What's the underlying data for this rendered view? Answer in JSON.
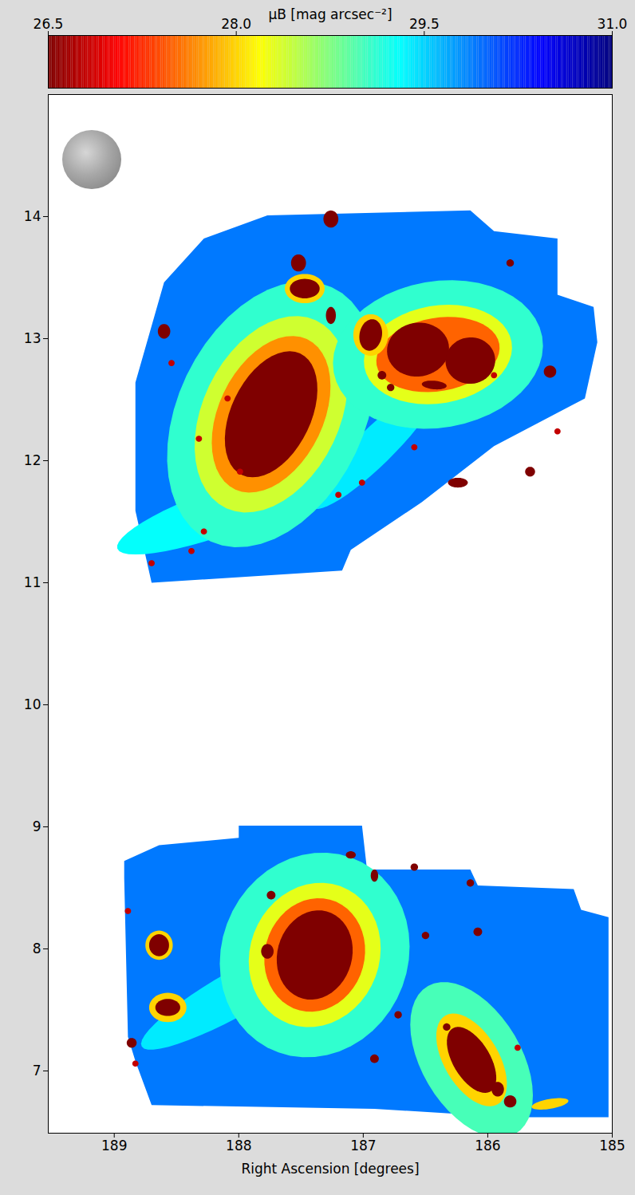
{
  "chart_data": {
    "type": "map",
    "xlabel": "Right Ascension [degrees]",
    "xlim": [
      189.53,
      185
    ],
    "xticks": [
      189,
      188,
      187,
      186,
      185
    ],
    "ylim": [
      6.49,
      15.0
    ],
    "yticks": [
      7,
      8,
      9,
      10,
      11,
      12,
      13,
      14
    ],
    "colorbar": {
      "label": "μB [mag arcsec⁻²]",
      "lim": [
        26.5,
        31.0
      ],
      "ticks": [
        26.5,
        {
          "value": 28,
          "label": "28.0"
        },
        29.5,
        {
          "value": 31,
          "label": "31.0"
        }
      ]
    },
    "regions": [
      {
        "mu": 29.9,
        "points": [
          [
            188.6,
            13.46
          ],
          [
            188.28,
            13.82
          ],
          [
            187.77,
            14.01
          ],
          [
            186.14,
            14.05
          ],
          [
            185.95,
            13.88
          ],
          [
            185.44,
            13.82
          ],
          [
            185.44,
            13.36
          ],
          [
            185.15,
            13.26
          ],
          [
            185.12,
            12.97
          ],
          [
            185.22,
            12.51
          ],
          [
            185.95,
            12.12
          ],
          [
            186.53,
            11.66
          ],
          [
            187.1,
            11.27
          ],
          [
            187.17,
            11.1
          ],
          [
            188.7,
            11.0
          ],
          [
            188.83,
            11.59
          ],
          [
            188.83,
            12.64
          ]
        ]
      },
      {
        "mu": 29.9,
        "points": [
          [
            188.92,
            8.72
          ],
          [
            188.64,
            8.85
          ],
          [
            188.0,
            8.91
          ],
          [
            188.0,
            9.01
          ],
          [
            187.01,
            9.01
          ],
          [
            186.97,
            8.65
          ],
          [
            186.14,
            8.65
          ],
          [
            186.08,
            8.52
          ],
          [
            185.31,
            8.49
          ],
          [
            185.25,
            8.32
          ],
          [
            185.03,
            8.26
          ],
          [
            185.03,
            6.62
          ],
          [
            185.82,
            6.62
          ],
          [
            186.91,
            6.69
          ],
          [
            188.7,
            6.72
          ],
          [
            188.83,
            7.08
          ],
          [
            188.89,
            7.28
          ],
          [
            188.92,
            8.58
          ]
        ]
      }
    ],
    "sources": [
      {
        "ra": 188.12,
        "dec": 11.59,
        "a": 0.91,
        "b": 0.19,
        "pa": 70,
        "mu": 29.3
      },
      {
        "ra": 186.91,
        "dec": 12.11,
        "a": 0.7,
        "b": 0.15,
        "pa": 45,
        "mu": 29.4
      },
      {
        "ra": 188.0,
        "dec": 7.65,
        "a": 0.9,
        "b": 0.18,
        "pa": 60,
        "mu": 29.4
      },
      {
        "ra": 187.74,
        "dec": 12.38,
        "a": 1.15,
        "b": 0.75,
        "pa": 25,
        "mu": 29.1
      },
      {
        "ra": 187.74,
        "dec": 12.38,
        "a": 0.85,
        "b": 0.55,
        "pa": 25,
        "mu": 28.4
      },
      {
        "ra": 187.74,
        "dec": 12.38,
        "a": 0.68,
        "b": 0.42,
        "pa": 25,
        "mu": 27.7
      },
      {
        "ra": 187.74,
        "dec": 12.38,
        "a": 0.55,
        "b": 0.32,
        "pa": 25,
        "mu": 26.5
      },
      {
        "ra": 186.4,
        "dec": 12.87,
        "a": 0.85,
        "b": 0.6,
        "pa": 80,
        "mu": 29.1
      },
      {
        "ra": 186.4,
        "dec": 12.87,
        "a": 0.6,
        "b": 0.4,
        "pa": 80,
        "mu": 28.3
      },
      {
        "ra": 186.4,
        "dec": 12.87,
        "a": 0.5,
        "b": 0.3,
        "pa": 80,
        "mu": 27.5
      },
      {
        "ra": 186.56,
        "dec": 12.91,
        "a": 0.25,
        "b": 0.22,
        "pa": 80,
        "mu": 26.5
      },
      {
        "ra": 186.14,
        "dec": 12.82,
        "a": 0.2,
        "b": 0.19,
        "pa": 80,
        "mu": 26.5
      },
      {
        "ra": 186.94,
        "dec": 13.03,
        "a": 0.17,
        "b": 0.14,
        "pa": 0,
        "mu": 28.0
      },
      {
        "ra": 186.94,
        "dec": 13.03,
        "a": 0.13,
        "b": 0.09,
        "pa": 10,
        "mu": 26.5
      },
      {
        "ra": 187.47,
        "dec": 13.41,
        "a": 0.16,
        "b": 0.12,
        "pa": 90,
        "mu": 28.0
      },
      {
        "ra": 187.47,
        "dec": 13.41,
        "a": 0.12,
        "b": 0.08,
        "pa": 90,
        "mu": 26.5
      },
      {
        "ra": 187.52,
        "dec": 13.62,
        "a": 0.07,
        "b": 0.06,
        "pa": 0,
        "mu": 26.5
      },
      {
        "ra": 187.26,
        "dec": 13.98,
        "a": 0.07,
        "b": 0.06,
        "pa": 0,
        "mu": 26.5
      },
      {
        "ra": 187.26,
        "dec": 13.19,
        "a": 0.07,
        "b": 0.04,
        "pa": 0,
        "mu": 26.5
      },
      {
        "ra": 188.6,
        "dec": 13.06,
        "a": 0.06,
        "b": 0.05,
        "pa": 0,
        "mu": 26.5
      },
      {
        "ra": 185.5,
        "dec": 12.73,
        "a": 0.05,
        "b": 0.05,
        "pa": 0,
        "mu": 26.5
      },
      {
        "ra": 186.24,
        "dec": 11.82,
        "a": 0.08,
        "b": 0.04,
        "pa": 90,
        "mu": 26.5
      },
      {
        "ra": 185.66,
        "dec": 11.91,
        "a": 0.04,
        "b": 0.04,
        "pa": 0,
        "mu": 26.5
      },
      {
        "ra": 186.43,
        "dec": 12.62,
        "a": 0.1,
        "b": 0.035,
        "pa": 95,
        "mu": 26.5
      },
      {
        "ra": 185.82,
        "dec": 13.62,
        "a": 0.03,
        "b": 0.03,
        "pa": 0,
        "mu": 26.5
      },
      {
        "ra": 186.85,
        "dec": 12.7,
        "a": 0.035,
        "b": 0.035,
        "pa": 0,
        "mu": 26.5
      },
      {
        "ra": 186.78,
        "dec": 12.6,
        "a": 0.03,
        "b": 0.03,
        "pa": 0,
        "mu": 26.5
      },
      {
        "ra": 188.7,
        "dec": 11.16,
        "a": 0.025,
        "b": 0.025,
        "pa": 0,
        "mu": 26.8
      },
      {
        "ra": 188.28,
        "dec": 11.42,
        "a": 0.025,
        "b": 0.025,
        "pa": 0,
        "mu": 26.8
      },
      {
        "ra": 187.99,
        "dec": 11.91,
        "a": 0.025,
        "b": 0.025,
        "pa": 0,
        "mu": 26.8
      },
      {
        "ra": 188.38,
        "dec": 11.26,
        "a": 0.025,
        "b": 0.025,
        "pa": 0,
        "mu": 26.8
      },
      {
        "ra": 188.54,
        "dec": 12.8,
        "a": 0.025,
        "b": 0.025,
        "pa": 0,
        "mu": 26.8
      },
      {
        "ra": 188.09,
        "dec": 12.51,
        "a": 0.025,
        "b": 0.025,
        "pa": 0,
        "mu": 26.8
      },
      {
        "ra": 187.2,
        "dec": 11.72,
        "a": 0.025,
        "b": 0.025,
        "pa": 0,
        "mu": 26.8
      },
      {
        "ra": 187.01,
        "dec": 11.82,
        "a": 0.025,
        "b": 0.025,
        "pa": 0,
        "mu": 26.8
      },
      {
        "ra": 186.59,
        "dec": 12.11,
        "a": 0.025,
        "b": 0.025,
        "pa": 0,
        "mu": 26.8
      },
      {
        "ra": 185.44,
        "dec": 12.24,
        "a": 0.025,
        "b": 0.025,
        "pa": 0,
        "mu": 26.8
      },
      {
        "ra": 185.95,
        "dec": 12.7,
        "a": 0.025,
        "b": 0.025,
        "pa": 0,
        "mu": 26.8
      },
      {
        "ra": 188.32,
        "dec": 12.18,
        "a": 0.025,
        "b": 0.025,
        "pa": 0,
        "mu": 26.8
      },
      {
        "ra": 187.39,
        "dec": 7.95,
        "a": 0.85,
        "b": 0.75,
        "pa": 20,
        "mu": 29.1
      },
      {
        "ra": 187.39,
        "dec": 7.95,
        "a": 0.6,
        "b": 0.52,
        "pa": 20,
        "mu": 28.3
      },
      {
        "ra": 187.39,
        "dec": 7.95,
        "a": 0.47,
        "b": 0.4,
        "pa": 15,
        "mu": 27.5
      },
      {
        "ra": 187.39,
        "dec": 7.95,
        "a": 0.37,
        "b": 0.3,
        "pa": 15,
        "mu": 26.5
      },
      {
        "ra": 186.13,
        "dec": 7.09,
        "a": 0.7,
        "b": 0.4,
        "pa": -30,
        "mu": 29.0
      },
      {
        "ra": 186.13,
        "dec": 7.09,
        "a": 0.42,
        "b": 0.22,
        "pa": -30,
        "mu": 28.0
      },
      {
        "ra": 186.13,
        "dec": 7.09,
        "a": 0.3,
        "b": 0.15,
        "pa": -30,
        "mu": 26.5
      },
      {
        "ra": 185.5,
        "dec": 6.73,
        "a": 0.15,
        "b": 0.04,
        "pa": 80,
        "mu": 28.0
      },
      {
        "ra": 185.92,
        "dec": 6.85,
        "a": 0.06,
        "b": 0.05,
        "pa": 0,
        "mu": 26.5
      },
      {
        "ra": 185.82,
        "dec": 6.75,
        "a": 0.05,
        "b": 0.05,
        "pa": 0,
        "mu": 26.5
      },
      {
        "ra": 188.64,
        "dec": 8.03,
        "a": 0.12,
        "b": 0.11,
        "pa": 0,
        "mu": 28.0
      },
      {
        "ra": 188.64,
        "dec": 8.03,
        "a": 0.09,
        "b": 0.08,
        "pa": 0,
        "mu": 26.5
      },
      {
        "ra": 188.57,
        "dec": 7.52,
        "a": 0.15,
        "b": 0.12,
        "pa": 90,
        "mu": 28.0
      },
      {
        "ra": 188.57,
        "dec": 7.52,
        "a": 0.1,
        "b": 0.07,
        "pa": 90,
        "mu": 26.5
      },
      {
        "ra": 188.86,
        "dec": 7.23,
        "a": 0.04,
        "b": 0.04,
        "pa": 0,
        "mu": 26.5
      },
      {
        "ra": 187.77,
        "dec": 7.98,
        "a": 0.06,
        "b": 0.05,
        "pa": 0,
        "mu": 26.5
      },
      {
        "ra": 187.74,
        "dec": 8.44,
        "a": 0.035,
        "b": 0.035,
        "pa": 0,
        "mu": 26.5
      },
      {
        "ra": 186.91,
        "dec": 8.6,
        "a": 0.05,
        "b": 0.03,
        "pa": 0,
        "mu": 26.5
      },
      {
        "ra": 186.59,
        "dec": 8.67,
        "a": 0.03,
        "b": 0.03,
        "pa": 0,
        "mu": 26.5
      },
      {
        "ra": 186.08,
        "dec": 8.14,
        "a": 0.035,
        "b": 0.035,
        "pa": 0,
        "mu": 26.5
      },
      {
        "ra": 186.33,
        "dec": 7.36,
        "a": 0.03,
        "b": 0.03,
        "pa": 0,
        "mu": 26.5
      },
      {
        "ra": 186.91,
        "dec": 7.1,
        "a": 0.035,
        "b": 0.035,
        "pa": 0,
        "mu": 26.5
      },
      {
        "ra": 186.72,
        "dec": 7.46,
        "a": 0.03,
        "b": 0.03,
        "pa": 0,
        "mu": 26.5
      },
      {
        "ra": 186.14,
        "dec": 8.54,
        "a": 0.03,
        "b": 0.03,
        "pa": 0,
        "mu": 26.5
      },
      {
        "ra": 186.5,
        "dec": 8.11,
        "a": 0.03,
        "b": 0.03,
        "pa": 0,
        "mu": 26.5
      },
      {
        "ra": 187.1,
        "dec": 8.77,
        "a": 0.04,
        "b": 0.03,
        "pa": 90,
        "mu": 26.5
      },
      {
        "ra": 188.83,
        "dec": 7.06,
        "a": 0.025,
        "b": 0.025,
        "pa": 0,
        "mu": 26.8
      },
      {
        "ra": 188.89,
        "dec": 8.31,
        "a": 0.025,
        "b": 0.025,
        "pa": 0,
        "mu": 26.8
      },
      {
        "ra": 185.76,
        "dec": 7.19,
        "a": 0.025,
        "b": 0.025,
        "pa": 0,
        "mu": 26.8
      }
    ]
  }
}
